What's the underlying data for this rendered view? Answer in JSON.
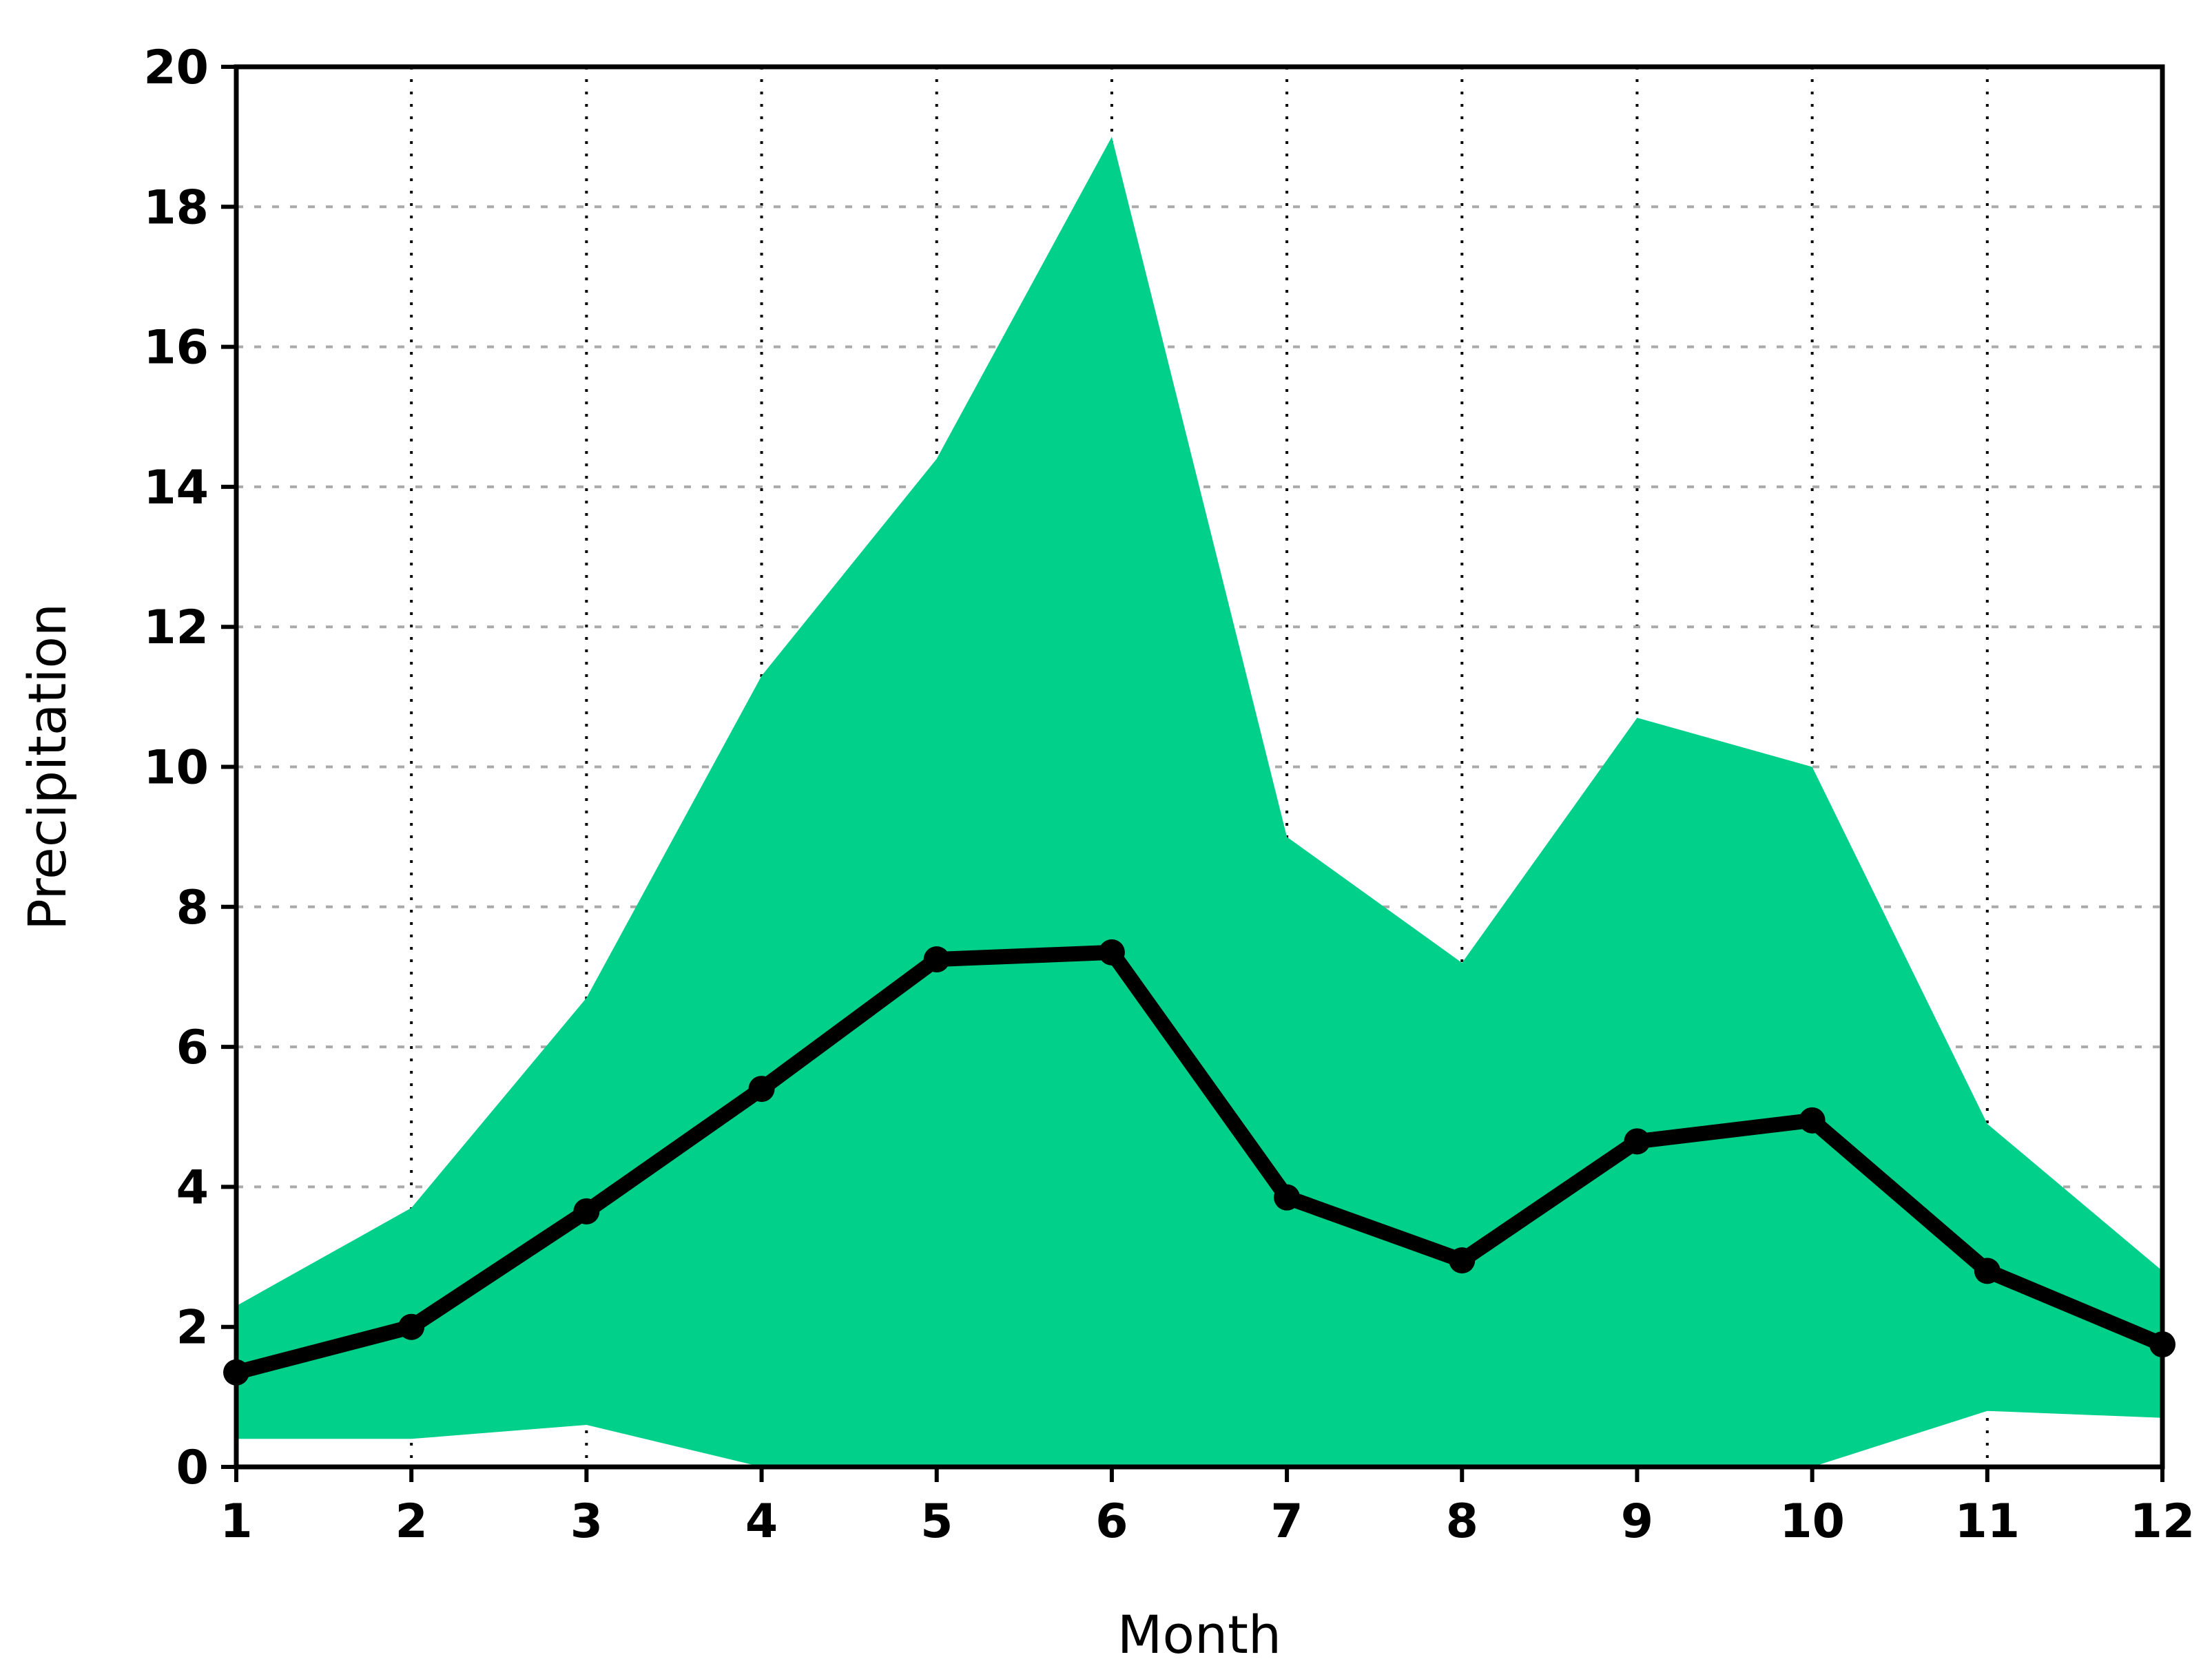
{
  "chart_data": {
    "type": "line",
    "title": "",
    "xlabel": "Month",
    "ylabel": "Precipitation",
    "x": [
      1,
      2,
      3,
      4,
      5,
      6,
      7,
      8,
      9,
      10,
      11,
      12
    ],
    "xlim": [
      1,
      12
    ],
    "ylim": [
      0,
      20
    ],
    "xticks": [
      "1",
      "2",
      "3",
      "4",
      "5",
      "6",
      "7",
      "8",
      "9",
      "10",
      "11",
      "12"
    ],
    "yticks": [
      "0",
      "2",
      "4",
      "6",
      "8",
      "10",
      "12",
      "14",
      "16",
      "18",
      "20"
    ],
    "series": [
      {
        "values": [
          1.35,
          2.0,
          3.65,
          5.4,
          7.25,
          7.35,
          3.85,
          2.95,
          4.65,
          4.95,
          2.8,
          1.75
        ],
        "color": "#000000",
        "marker": "circle"
      }
    ],
    "range_band": {
      "upper": [
        2.3,
        3.7,
        6.7,
        11.3,
        14.4,
        19.0,
        9.0,
        7.2,
        10.7,
        10.0,
        4.9,
        2.8
      ],
      "lower": [
        0.4,
        0.4,
        0.6,
        0.0,
        0.0,
        0.0,
        0.0,
        0.0,
        0.0,
        0.0,
        0.8,
        0.7
      ],
      "color": "#00d08a"
    },
    "grid": {
      "vertical": "dotted",
      "horizontal": "dashed"
    },
    "legend": "none"
  }
}
